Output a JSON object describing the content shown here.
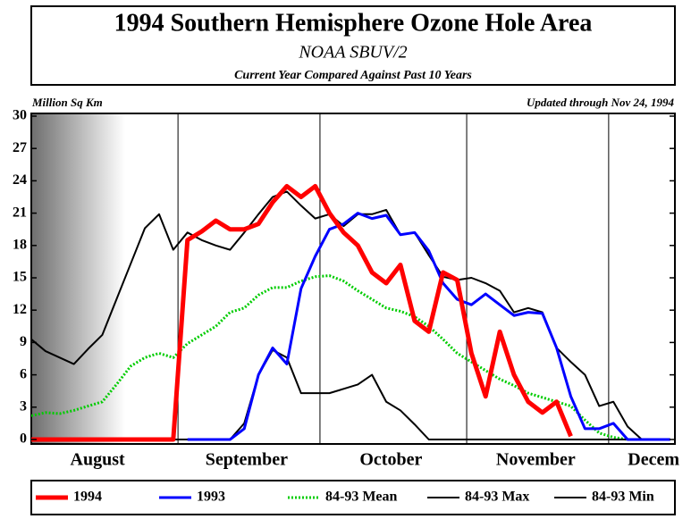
{
  "chart_data": {
    "type": "line",
    "title": "1994 Southern Hemisphere Ozone Hole Area",
    "subtitle": "NOAA SBUV/2",
    "subtitle2": "Current Year Compared Against Past 10 Years",
    "ylabel": "Million Sq Km",
    "annotation": "Updated through Nov 24, 1994",
    "x": [
      0,
      3,
      6,
      9,
      12,
      15,
      18,
      21,
      24,
      27,
      30,
      33,
      36,
      39,
      42,
      45,
      48,
      51,
      54,
      57,
      60,
      63,
      66,
      69,
      72,
      75,
      78,
      81,
      84,
      87,
      90,
      93,
      96,
      99,
      102,
      105,
      108,
      111,
      114,
      117,
      120,
      123,
      126,
      129,
      132,
      135
    ],
    "xlim": [
      0,
      136
    ],
    "xticks": [
      {
        "value": 14,
        "label": "August"
      },
      {
        "value": 45.5,
        "label": "September"
      },
      {
        "value": 76,
        "label": "October"
      },
      {
        "value": 106.6,
        "label": "November"
      },
      {
        "value": 131.5,
        "label": "Decem"
      }
    ],
    "xgrid": [
      31,
      61,
      92,
      122
    ],
    "ylim": [
      0,
      30
    ],
    "yticks": [
      0,
      3,
      6,
      9,
      12,
      15,
      18,
      21,
      24,
      27,
      30
    ],
    "legend": "bottom",
    "series": [
      {
        "name": "1994",
        "color": "#ff0000",
        "width": 5,
        "values": [
          0,
          0,
          0,
          0,
          0,
          0,
          0,
          0,
          0,
          0,
          0,
          18.5,
          19.3,
          20.3,
          19.5,
          19.5,
          20,
          22,
          23.5,
          22.5,
          23.5,
          21,
          19.2,
          18,
          15.5,
          14.5,
          16.2,
          11,
          10,
          15.5,
          14.8,
          8,
          4,
          10,
          6,
          3.5,
          2.5,
          3.5,
          0.3,
          null,
          null,
          null,
          null,
          null,
          null,
          null
        ]
      },
      {
        "name": "1993",
        "color": "#0000ff",
        "width": 3,
        "values": [
          null,
          null,
          null,
          null,
          null,
          null,
          null,
          null,
          null,
          null,
          null,
          0,
          0,
          0,
          0,
          1,
          6,
          8.5,
          7,
          14,
          17,
          19.5,
          20,
          21,
          20.5,
          20.8,
          19,
          19.2,
          17.5,
          14.5,
          13,
          12.5,
          13.5,
          12.5,
          11.5,
          11.8,
          11.7,
          8.5,
          4,
          1,
          1,
          1.5,
          0,
          0,
          0,
          0
        ]
      },
      {
        "name": "84-93 Mean",
        "color": "#00cc00",
        "width": 3,
        "dash": "2 2",
        "values": [
          2.2,
          2.5,
          2.4,
          2.7,
          3.1,
          3.5,
          5.1,
          6.8,
          7.6,
          8,
          7.6,
          8.9,
          9.7,
          10.5,
          11.8,
          12.2,
          13.4,
          14.1,
          14.1,
          14.7,
          15.1,
          15.2,
          14.7,
          13.8,
          13,
          12.2,
          11.9,
          11.4,
          10.5,
          9.3,
          8,
          7.2,
          6.4,
          5.6,
          5,
          4.3,
          3.9,
          3.5,
          3.1,
          1.8,
          0.6,
          0.2,
          0,
          0,
          0,
          0
        ]
      },
      {
        "name": "84-93 Max",
        "color": "#000000",
        "width": 2,
        "values": [
          9.3,
          8.2,
          7.6,
          7,
          8.4,
          9.7,
          13,
          16.3,
          19.6,
          20.9,
          17.6,
          19.2,
          18.5,
          18,
          17.6,
          19.2,
          20.9,
          22.5,
          23,
          21.7,
          20.5,
          20.9,
          19.8,
          20.9,
          20.9,
          21.3,
          19,
          19.2,
          17.1,
          15.1,
          14.8,
          15,
          14.5,
          13.8,
          11.8,
          12.2,
          11.8,
          8.5,
          7.2,
          6,
          3.1,
          3.5,
          1.2,
          0,
          0,
          0
        ]
      },
      {
        "name": "84-93 Min",
        "color": "#000000",
        "width": 2,
        "values": [
          0,
          0,
          0,
          0,
          0,
          0,
          0,
          0,
          0,
          0,
          0,
          0,
          0,
          0,
          0,
          1.5,
          6,
          8.3,
          7.6,
          4.3,
          4.3,
          4.3,
          4.7,
          5.1,
          6,
          3.5,
          2.7,
          1.4,
          0,
          0,
          0,
          0,
          0,
          0,
          0,
          0,
          0,
          0,
          0,
          0,
          0,
          0,
          0,
          0,
          0,
          0
        ]
      }
    ]
  }
}
